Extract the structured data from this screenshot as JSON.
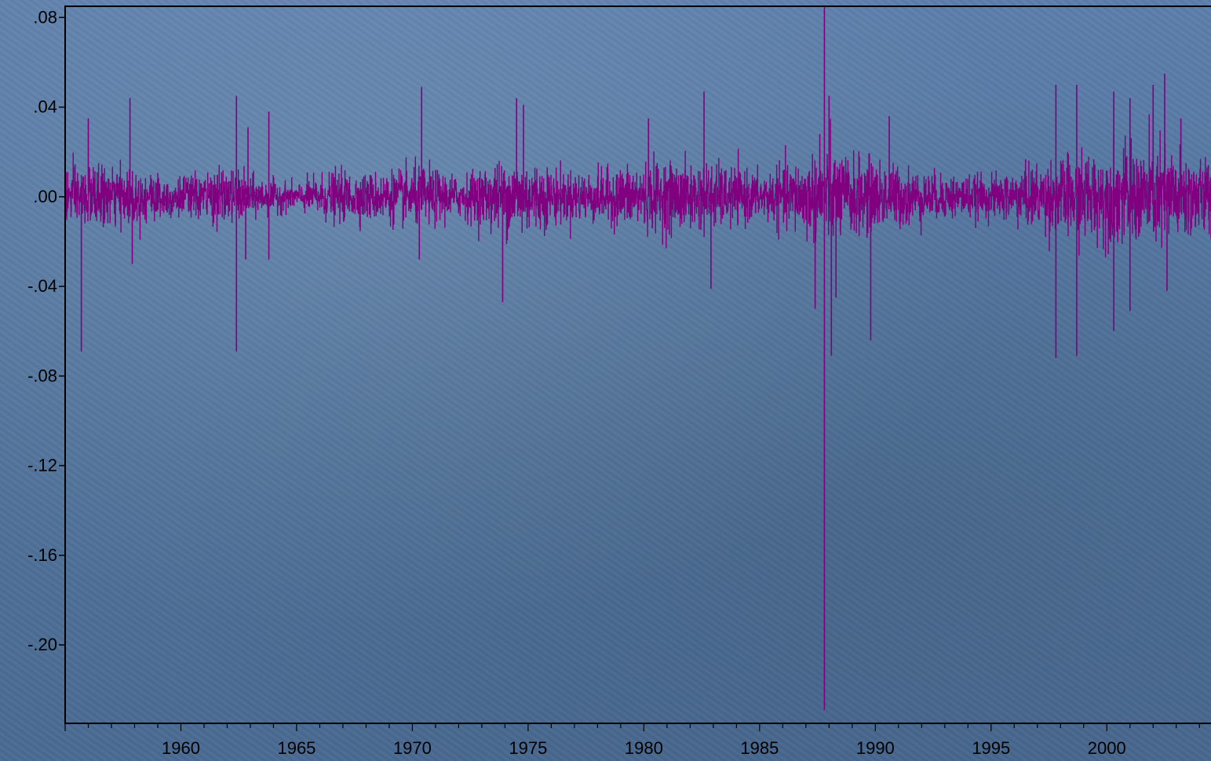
{
  "chart_data": {
    "type": "line",
    "title": "",
    "xlabel": "",
    "ylabel": "",
    "xlim": [
      1955,
      2004.5
    ],
    "ylim": [
      -0.235,
      0.085
    ],
    "x_ticks": [
      {
        "value": 1960,
        "label": "1960"
      },
      {
        "value": 1965,
        "label": "1965"
      },
      {
        "value": 1970,
        "label": "1970"
      },
      {
        "value": 1975,
        "label": "1975"
      },
      {
        "value": 1980,
        "label": "1980"
      },
      {
        "value": 1985,
        "label": "1985"
      },
      {
        "value": 1990,
        "label": "1990"
      },
      {
        "value": 1995,
        "label": "1995"
      },
      {
        "value": 2000,
        "label": "2000"
      }
    ],
    "y_ticks": [
      {
        "value": 0.08,
        "label": ".08"
      },
      {
        "value": 0.04,
        "label": ".04"
      },
      {
        "value": 0.0,
        "label": ".00"
      },
      {
        "value": -0.04,
        "label": "-.04"
      },
      {
        "value": -0.08,
        "label": "-.08"
      },
      {
        "value": -0.12,
        "label": "-.12"
      },
      {
        "value": -0.16,
        "label": "-.16"
      },
      {
        "value": -0.2,
        "label": "-.20"
      }
    ],
    "grid": false,
    "legend": "none",
    "series": [
      {
        "color": "#800080",
        "volatility": [
          {
            "x": 1955.0,
            "amp": 0.012
          },
          {
            "x": 1958.0,
            "amp": 0.011
          },
          {
            "x": 1960.0,
            "amp": 0.008
          },
          {
            "x": 1962.0,
            "amp": 0.011
          },
          {
            "x": 1963.5,
            "amp": 0.007
          },
          {
            "x": 1965.0,
            "amp": 0.005
          },
          {
            "x": 1966.5,
            "amp": 0.01
          },
          {
            "x": 1968.0,
            "amp": 0.009
          },
          {
            "x": 1970.5,
            "amp": 0.012
          },
          {
            "x": 1972.0,
            "amp": 0.008
          },
          {
            "x": 1974.5,
            "amp": 0.016
          },
          {
            "x": 1976.5,
            "amp": 0.01
          },
          {
            "x": 1978.0,
            "amp": 0.01
          },
          {
            "x": 1980.5,
            "amp": 0.014
          },
          {
            "x": 1983.0,
            "amp": 0.013
          },
          {
            "x": 1985.0,
            "amp": 0.009
          },
          {
            "x": 1987.8,
            "amp": 0.018
          },
          {
            "x": 1990.0,
            "amp": 0.014
          },
          {
            "x": 1992.5,
            "amp": 0.009
          },
          {
            "x": 1995.0,
            "amp": 0.008
          },
          {
            "x": 1997.0,
            "amp": 0.013
          },
          {
            "x": 1999.0,
            "amp": 0.017
          },
          {
            "x": 2001.0,
            "amp": 0.019
          },
          {
            "x": 2002.5,
            "amp": 0.021
          },
          {
            "x": 2004.5,
            "amp": 0.014
          }
        ],
        "spikes": [
          {
            "x": 1955.7,
            "y": -0.069
          },
          {
            "x": 1956.0,
            "y": 0.035
          },
          {
            "x": 1957.8,
            "y": 0.044
          },
          {
            "x": 1957.9,
            "y": -0.03
          },
          {
            "x": 1962.4,
            "y": 0.045
          },
          {
            "x": 1962.4,
            "y": -0.069
          },
          {
            "x": 1962.9,
            "y": 0.031
          },
          {
            "x": 1962.8,
            "y": -0.028
          },
          {
            "x": 1963.8,
            "y": 0.038
          },
          {
            "x": 1963.8,
            "y": -0.028
          },
          {
            "x": 1970.4,
            "y": 0.049
          },
          {
            "x": 1970.3,
            "y": -0.028
          },
          {
            "x": 1973.9,
            "y": -0.047
          },
          {
            "x": 1974.5,
            "y": 0.044
          },
          {
            "x": 1974.8,
            "y": 0.041
          },
          {
            "x": 1982.6,
            "y": 0.047
          },
          {
            "x": 1982.9,
            "y": -0.041
          },
          {
            "x": 1980.2,
            "y": 0.035
          },
          {
            "x": 1987.4,
            "y": -0.05
          },
          {
            "x": 1987.6,
            "y": 0.028
          },
          {
            "x": 1987.8,
            "y": -0.229
          },
          {
            "x": 1987.8,
            "y": 0.085
          },
          {
            "x": 1988.1,
            "y": -0.071
          },
          {
            "x": 1988.3,
            "y": -0.045
          },
          {
            "x": 1988.0,
            "y": 0.045
          },
          {
            "x": 1989.8,
            "y": -0.064
          },
          {
            "x": 1990.6,
            "y": 0.036
          },
          {
            "x": 1997.8,
            "y": -0.072
          },
          {
            "x": 1997.8,
            "y": 0.05
          },
          {
            "x": 1998.7,
            "y": -0.071
          },
          {
            "x": 1998.7,
            "y": 0.05
          },
          {
            "x": 2000.3,
            "y": -0.06
          },
          {
            "x": 2000.3,
            "y": 0.047
          },
          {
            "x": 2001.0,
            "y": -0.051
          },
          {
            "x": 2001.0,
            "y": 0.044
          },
          {
            "x": 2002.5,
            "y": 0.055
          },
          {
            "x": 2002.6,
            "y": -0.042
          },
          {
            "x": 2002.0,
            "y": 0.05
          },
          {
            "x": 2003.2,
            "y": 0.035
          }
        ]
      }
    ]
  }
}
